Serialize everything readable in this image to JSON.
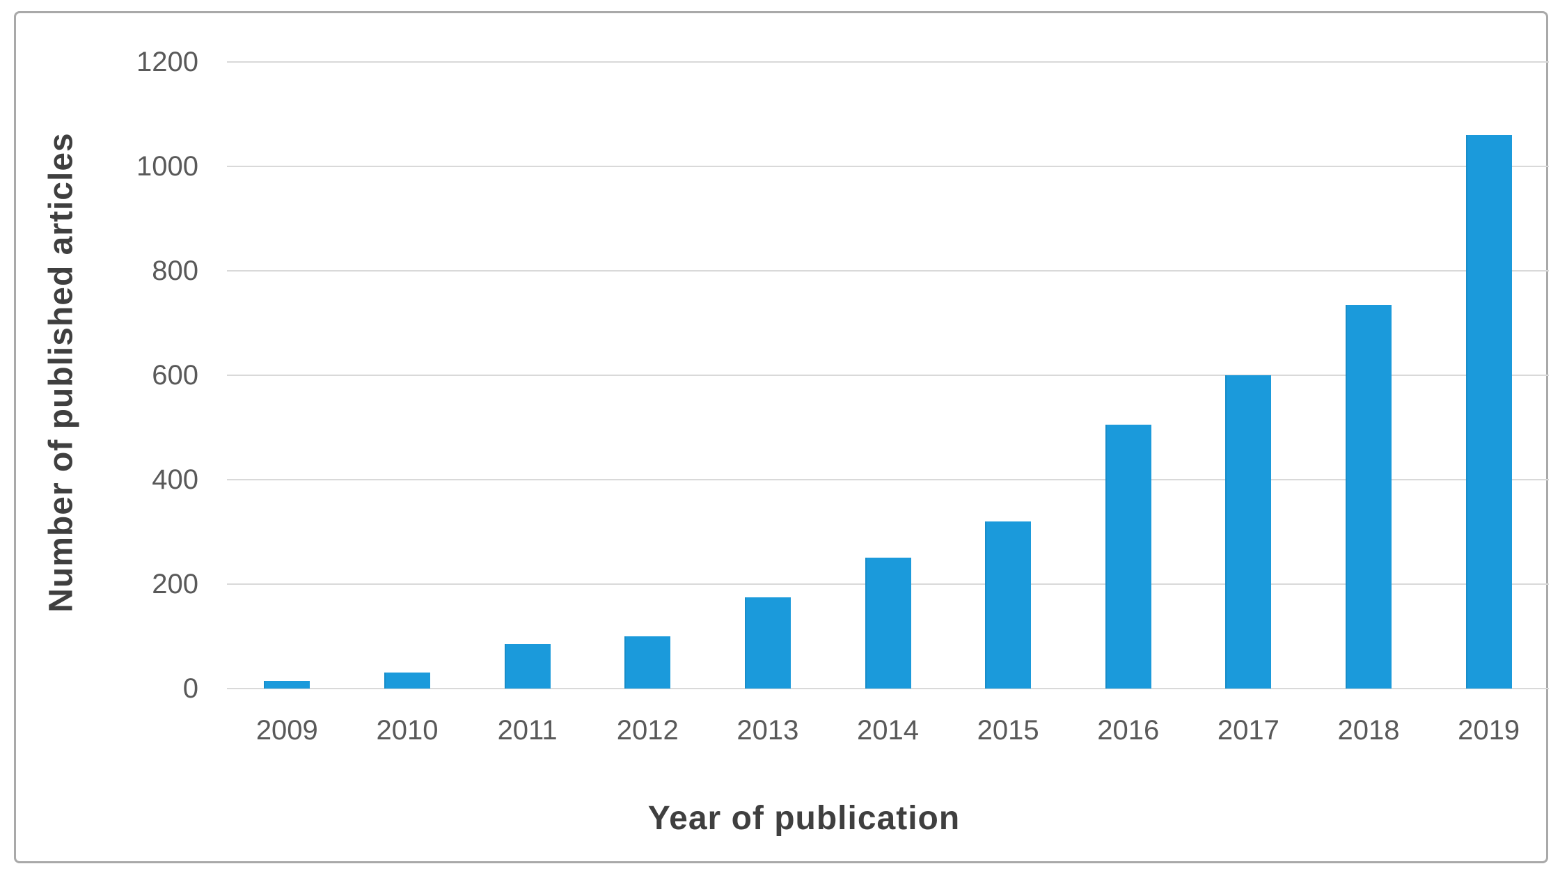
{
  "figure": {
    "background_color": "#ffffff",
    "border_color": "#a9a9a9"
  },
  "chart_data": {
    "type": "bar",
    "title": "",
    "xlabel": "Year of publication",
    "ylabel": "Number of published articles",
    "categories": [
      "2009",
      "2010",
      "2011",
      "2012",
      "2013",
      "2014",
      "2015",
      "2016",
      "2017",
      "2018",
      "2019"
    ],
    "values": [
      15,
      30,
      85,
      100,
      175,
      250,
      320,
      505,
      600,
      735,
      1060
    ],
    "yticks": [
      0,
      200,
      400,
      600,
      800,
      1000,
      1200
    ],
    "ylim": [
      0,
      1200
    ],
    "grid": "horizontal",
    "gridline_color": "#d9d9d9",
    "legend": "none",
    "bar_color": "#1b9adb",
    "axis_tick_text_color": "#595959",
    "axis_title_text_color": "#3f3f3f"
  }
}
